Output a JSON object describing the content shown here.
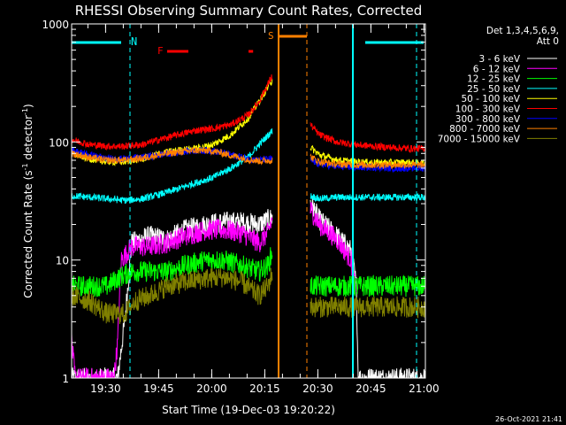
{
  "chart_data": {
    "type": "line",
    "title": "RHESSI Observing Summary Count Rates, Corrected",
    "xlabel": "Start Time (19-Dec-03 19:20:22)",
    "ylabel": "Corrected Count Rate (s⁻¹ detector⁻¹)",
    "ylabel_parts": [
      "Corrected Count Rate (s",
      "-1",
      " detector",
      "-1",
      ")"
    ],
    "yscale": "log",
    "ylim": [
      1,
      1000
    ],
    "xlim_minutes": [
      0,
      100
    ],
    "x_ticks": [
      {
        "label": "19:30",
        "minute": 9.6
      },
      {
        "label": "19:45",
        "minute": 24.6
      },
      {
        "label": "20:00",
        "minute": 39.6
      },
      {
        "label": "20:15",
        "minute": 54.6
      },
      {
        "label": "20:30",
        "minute": 69.6
      },
      {
        "label": "20:45",
        "minute": 84.6
      },
      {
        "label": "21:00",
        "minute": 99.6
      }
    ],
    "y_ticks": [
      {
        "label": "1",
        "value": 1
      },
      {
        "label": "10",
        "value": 10
      },
      {
        "label": "100",
        "value": 100
      },
      {
        "label": "1000",
        "value": 1000
      }
    ],
    "legend_header": [
      "Det 1,3,4,5,6,9,",
      "Att 0"
    ],
    "series": [
      {
        "name": "3 - 6 keV",
        "color": "#ffffff",
        "points": [
          [
            0,
            1
          ],
          [
            13,
            1
          ],
          [
            15,
            3
          ],
          [
            17,
            14
          ],
          [
            22,
            16
          ],
          [
            27,
            15
          ],
          [
            32,
            18
          ],
          [
            38,
            20
          ],
          [
            43,
            21
          ],
          [
            48,
            21
          ],
          [
            53,
            20
          ],
          [
            55.5,
            22
          ],
          [
            56.8,
            23
          ],
          [
            67.5,
            31
          ],
          [
            70,
            22
          ],
          [
            75,
            16
          ],
          [
            79,
            12
          ],
          [
            80.5,
            6
          ],
          [
            81,
            1
          ],
          [
            85,
            1
          ],
          [
            100,
            1
          ]
        ]
      },
      {
        "name": "6 - 12 keV",
        "color": "#ff00ff",
        "points": [
          [
            0,
            2
          ],
          [
            1,
            1
          ],
          [
            12,
            1
          ],
          [
            13,
            2
          ],
          [
            14,
            10
          ],
          [
            17,
            13
          ],
          [
            22,
            13
          ],
          [
            27,
            14
          ],
          [
            32,
            16
          ],
          [
            38,
            18
          ],
          [
            43,
            18
          ],
          [
            48,
            17
          ],
          [
            53,
            14
          ],
          [
            55.5,
            17
          ],
          [
            56.8,
            23
          ],
          [
            67.5,
            27
          ],
          [
            70,
            20
          ],
          [
            75,
            15
          ],
          [
            79,
            10
          ],
          [
            80.5,
            5
          ]
        ]
      },
      {
        "name": "12 - 25 keV",
        "color": "#00ff00",
        "points": [
          [
            0,
            6
          ],
          [
            5,
            6
          ],
          [
            10,
            6
          ],
          [
            13,
            7
          ],
          [
            17,
            8
          ],
          [
            22,
            8
          ],
          [
            27,
            8
          ],
          [
            32,
            9
          ],
          [
            38,
            10
          ],
          [
            43,
            10
          ],
          [
            48,
            9
          ],
          [
            53,
            8
          ],
          [
            55.5,
            9
          ],
          [
            56.8,
            12
          ],
          [
            67.5,
            6
          ],
          [
            72,
            6
          ],
          [
            79,
            6
          ],
          [
            80.5,
            6
          ],
          [
            84,
            6
          ],
          [
            92,
            6
          ],
          [
            97,
            6
          ],
          [
            100,
            6
          ]
        ]
      },
      {
        "name": "25 - 50 keV",
        "color": "#00ffff",
        "points": [
          [
            0,
            35
          ],
          [
            5,
            34
          ],
          [
            10,
            33
          ],
          [
            15,
            32
          ],
          [
            20,
            33
          ],
          [
            25,
            36
          ],
          [
            30,
            40
          ],
          [
            35,
            45
          ],
          [
            40,
            50
          ],
          [
            45,
            60
          ],
          [
            50,
            75
          ],
          [
            53,
            95
          ],
          [
            56.8,
            125
          ],
          [
            67.5,
            35
          ],
          [
            70,
            33
          ],
          [
            75,
            34
          ],
          [
            80,
            34
          ],
          [
            85,
            34
          ],
          [
            90,
            34
          ],
          [
            95,
            34
          ],
          [
            100,
            34
          ]
        ]
      },
      {
        "name": "50 - 100 keV",
        "color": "#ffff00",
        "points": [
          [
            0,
            80
          ],
          [
            5,
            72
          ],
          [
            10,
            68
          ],
          [
            15,
            68
          ],
          [
            20,
            72
          ],
          [
            25,
            80
          ],
          [
            30,
            85
          ],
          [
            35,
            88
          ],
          [
            40,
            95
          ],
          [
            45,
            115
          ],
          [
            50,
            160
          ],
          [
            53,
            220
          ],
          [
            56.8,
            340
          ],
          [
            67.5,
            90
          ],
          [
            70,
            78
          ],
          [
            75,
            70
          ],
          [
            80,
            68
          ],
          [
            85,
            67
          ],
          [
            90,
            67
          ],
          [
            95,
            67
          ],
          [
            100,
            66
          ]
        ]
      },
      {
        "name": "100 - 300 keV",
        "color": "#ff0000",
        "points": [
          [
            0,
            105
          ],
          [
            5,
            95
          ],
          [
            10,
            92
          ],
          [
            15,
            92
          ],
          [
            20,
            95
          ],
          [
            25,
            105
          ],
          [
            30,
            115
          ],
          [
            35,
            125
          ],
          [
            40,
            130
          ],
          [
            45,
            140
          ],
          [
            50,
            170
          ],
          [
            53,
            220
          ],
          [
            56.8,
            370
          ],
          [
            67.5,
            140
          ],
          [
            70,
            115
          ],
          [
            75,
            100
          ],
          [
            80,
            95
          ],
          [
            85,
            92
          ],
          [
            90,
            90
          ],
          [
            95,
            88
          ],
          [
            100,
            88
          ]
        ]
      },
      {
        "name": "300 - 800 keV",
        "color": "#0000ff",
        "points": [
          [
            0,
            85
          ],
          [
            5,
            78
          ],
          [
            10,
            72
          ],
          [
            15,
            72
          ],
          [
            20,
            74
          ],
          [
            25,
            78
          ],
          [
            30,
            82
          ],
          [
            35,
            85
          ],
          [
            40,
            84
          ],
          [
            45,
            78
          ],
          [
            50,
            72
          ],
          [
            53,
            70
          ],
          [
            56.8,
            72
          ],
          [
            67.5,
            70
          ],
          [
            70,
            65
          ],
          [
            75,
            62
          ],
          [
            80,
            61
          ],
          [
            85,
            61
          ],
          [
            90,
            60
          ],
          [
            95,
            60
          ],
          [
            100,
            60
          ]
        ]
      },
      {
        "name": "800 - 7000 keV",
        "color": "#ff8000",
        "points": [
          [
            0,
            80
          ],
          [
            5,
            74
          ],
          [
            10,
            70
          ],
          [
            15,
            70
          ],
          [
            20,
            73
          ],
          [
            25,
            78
          ],
          [
            30,
            82
          ],
          [
            35,
            85
          ],
          [
            40,
            84
          ],
          [
            45,
            77
          ],
          [
            50,
            71
          ],
          [
            53,
            69
          ],
          [
            56.8,
            70
          ],
          [
            67.5,
            75
          ],
          [
            70,
            68
          ],
          [
            75,
            65
          ],
          [
            80,
            64
          ],
          [
            85,
            64
          ],
          [
            90,
            64
          ],
          [
            95,
            64
          ],
          [
            100,
            64
          ]
        ]
      },
      {
        "name": "7000 - 15000 keV",
        "color": "#808000",
        "points": [
          [
            0,
            5
          ],
          [
            5,
            4.5
          ],
          [
            10,
            3.5
          ],
          [
            15,
            3.5
          ],
          [
            18,
            4.5
          ],
          [
            22,
            5
          ],
          [
            27,
            6
          ],
          [
            32,
            6.5
          ],
          [
            38,
            7
          ],
          [
            43,
            7.2
          ],
          [
            48,
            6.5
          ],
          [
            53,
            5
          ],
          [
            55.5,
            6
          ],
          [
            56.8,
            8
          ],
          [
            67.5,
            4
          ],
          [
            72,
            4
          ],
          [
            79,
            4
          ],
          [
            80.5,
            4
          ],
          [
            84,
            4
          ],
          [
            92,
            4
          ],
          [
            97,
            4
          ],
          [
            100,
            4
          ]
        ]
      }
    ],
    "gaps_minutes": [
      [
        56.8,
        67.5
      ]
    ],
    "markers": [
      {
        "label": "N",
        "color": "#00ffff",
        "start": 0,
        "end": 16.5,
        "start2": 82.5,
        "end2": 100
      },
      {
        "label": "F",
        "color": "#ff0000",
        "segments": [
          [
            27,
            33
          ],
          [
            50,
            51.3
          ]
        ]
      },
      {
        "label": "S",
        "color": "#ff8000",
        "start": 58.5,
        "end": 66.5
      }
    ],
    "vlines": [
      {
        "minute": 16.5,
        "color": "#00ffff",
        "style": "dashed"
      },
      {
        "minute": 58.5,
        "color": "#ff8000",
        "style": "solid"
      },
      {
        "minute": 66.5,
        "color": "#ff8000",
        "style": "dashed"
      },
      {
        "minute": 79.5,
        "color": "#00ffff",
        "style": "solid"
      },
      {
        "minute": 97.5,
        "color": "#00ffff",
        "style": "dashed"
      }
    ],
    "timestamp": "26-Oct-2021 21:41"
  }
}
